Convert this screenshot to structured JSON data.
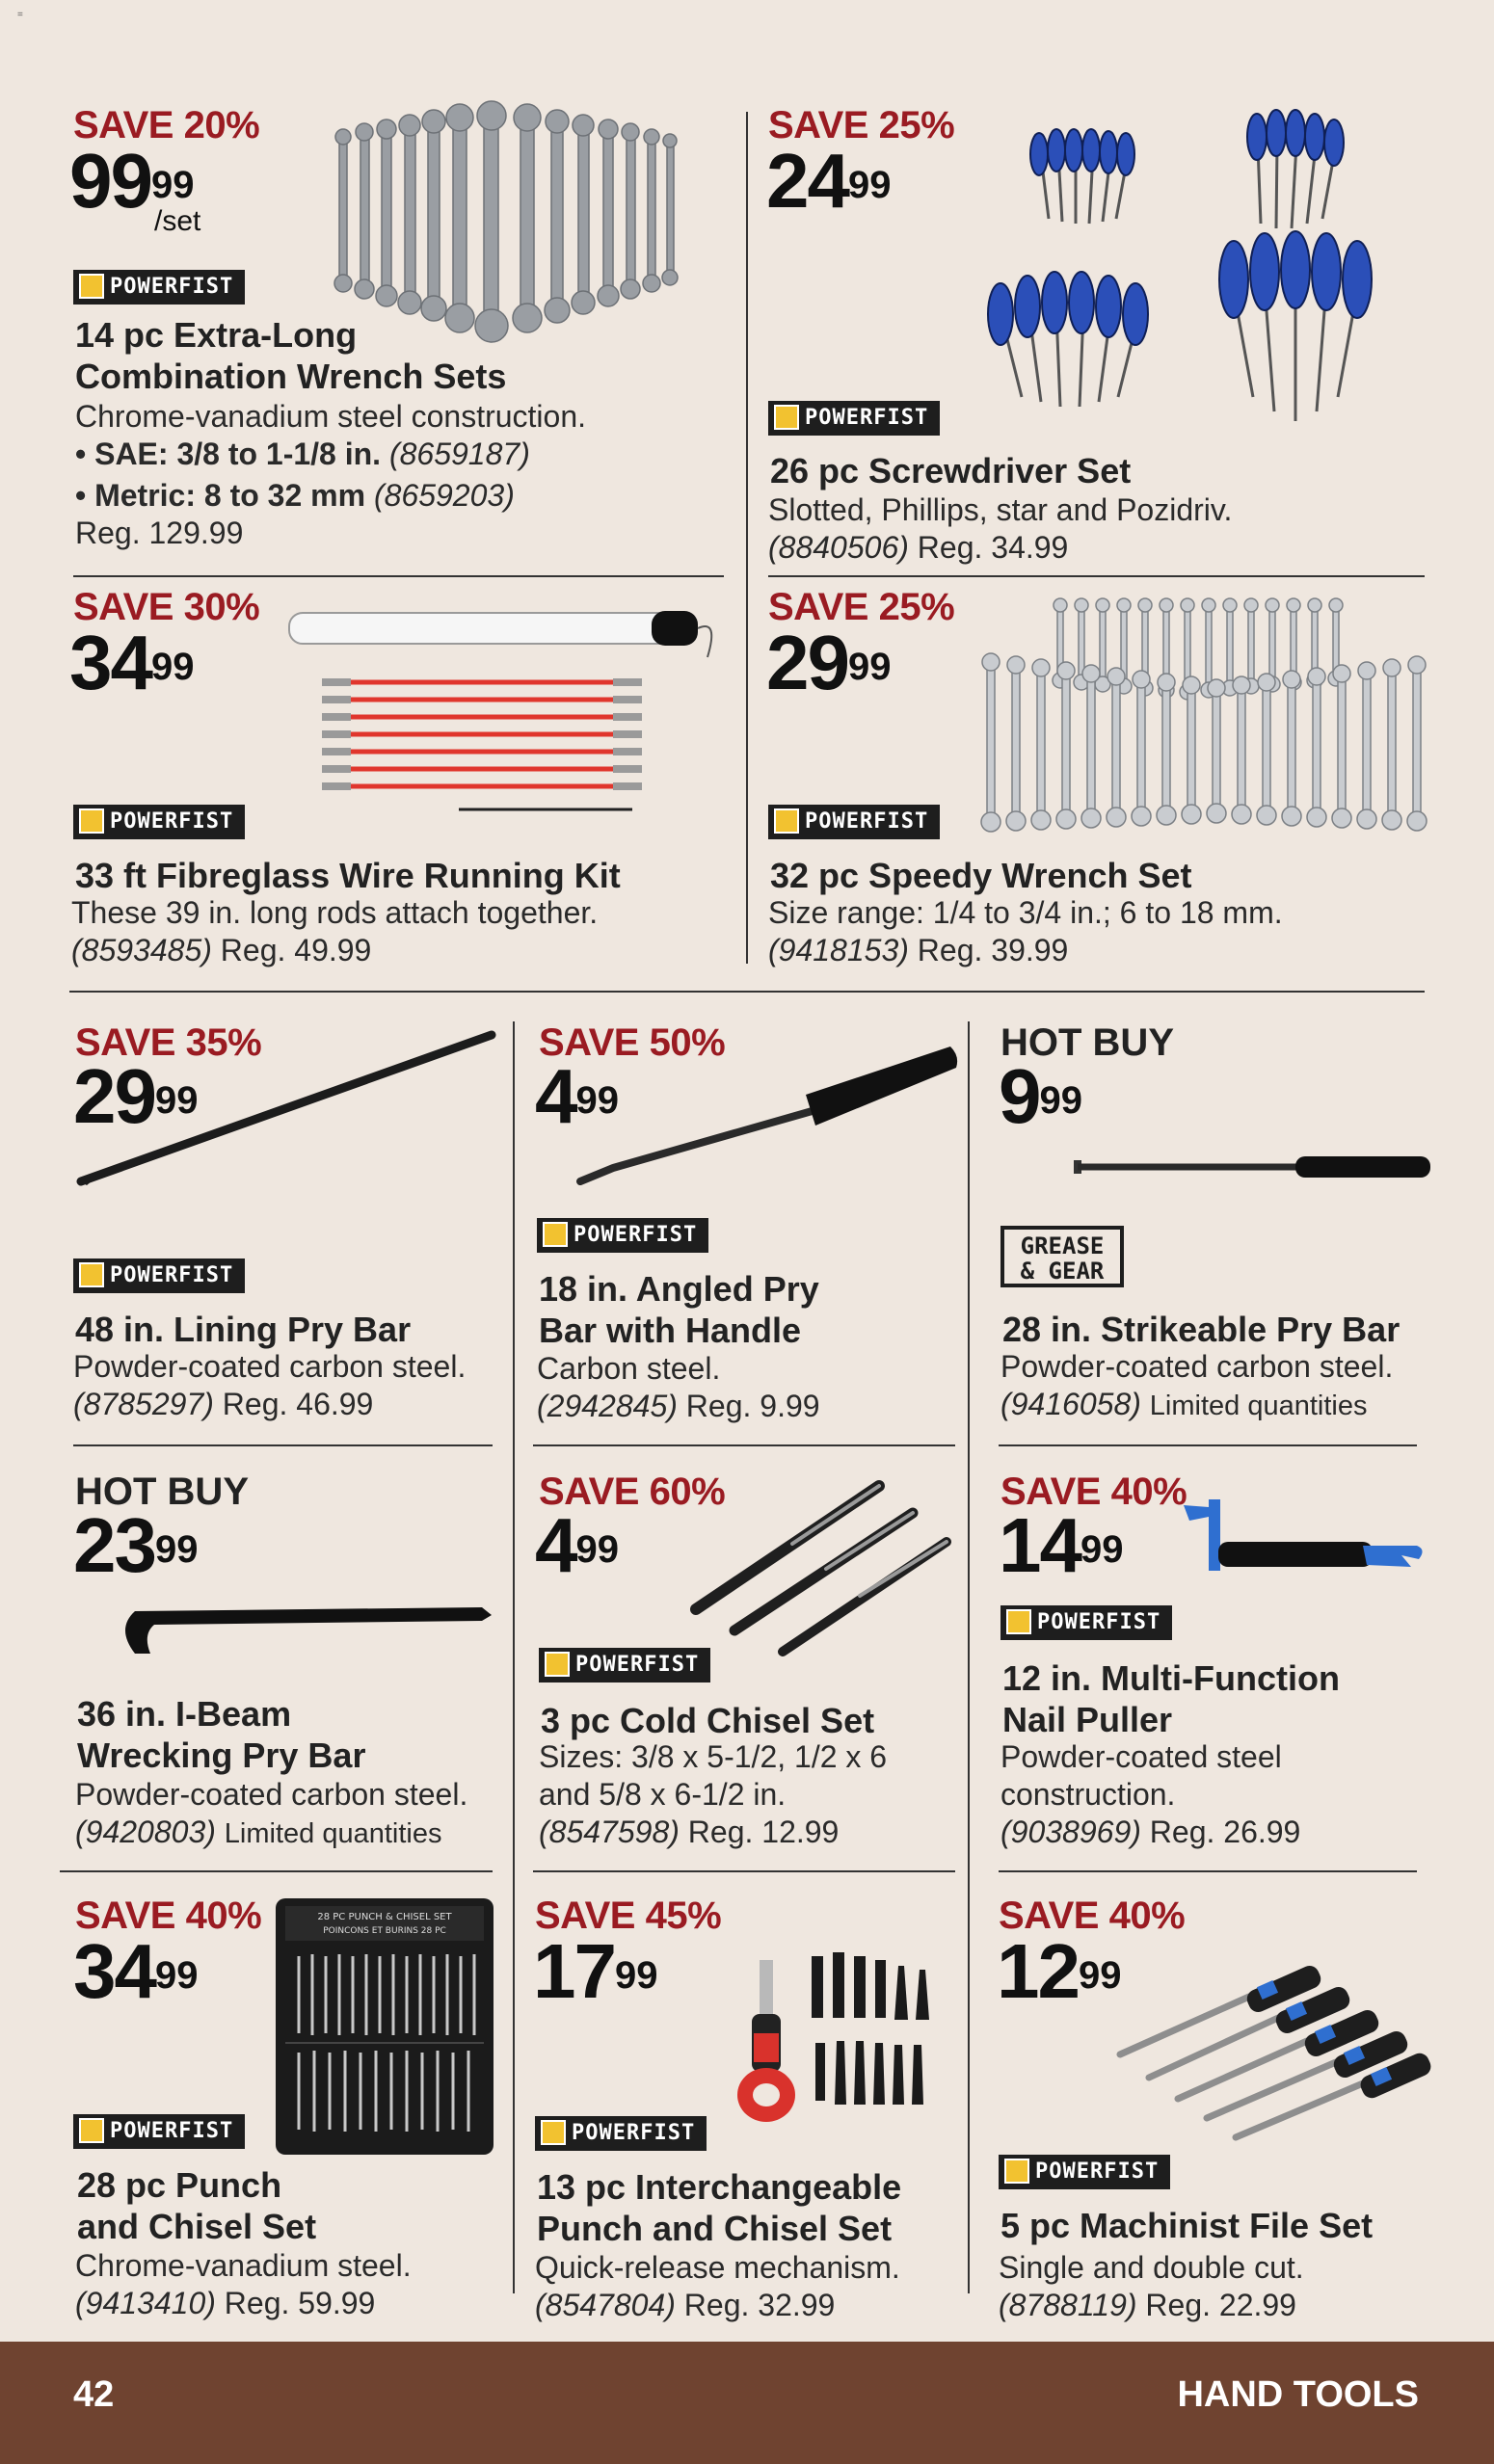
{
  "page": {
    "number": "42",
    "section": "HAND TOOLS",
    "corner_mark": "="
  },
  "brands": {
    "powerfist": "POWERFIST",
    "grease_gear_line1": "GREASE",
    "grease_gear_line2": "& GEAR"
  },
  "colors": {
    "save_red": "#9a1b22",
    "footer_brown": "#6f4330",
    "background": "#efe7df"
  },
  "products": [
    {
      "id": "wrench14",
      "badge": "SAVE 20%",
      "price_dollars": "99",
      "price_cents": "99",
      "per": "/set",
      "brand": "POWERFIST",
      "title_1": "14 pc Extra-Long",
      "title_2": "Combination Wrench Sets",
      "desc_1": "Chrome-vanadium steel construction.",
      "bullet_1_label": "• SAE: 3/8 to 1-1/8 in.",
      "bullet_1_sku": "(8659187)",
      "bullet_2_label": "• Metric: 8 to 32 mm",
      "bullet_2_sku": "(8659203)",
      "reg": "Reg. 129.99"
    },
    {
      "id": "screwdriver26",
      "badge": "SAVE 25%",
      "price_dollars": "24",
      "price_cents": "99",
      "brand": "POWERFIST",
      "title_1": "26 pc Screwdriver Set",
      "desc_1": "Slotted, Phillips, star and Pozidriv.",
      "sku": "(8840506)",
      "reg": "Reg. 34.99"
    },
    {
      "id": "fibreglass",
      "badge": "SAVE 30%",
      "price_dollars": "34",
      "price_cents": "99",
      "brand": "POWERFIST",
      "title_1": "33 ft Fibreglass Wire Running Kit",
      "desc_1": "These 39 in. long rods attach together.",
      "sku": "(8593485)",
      "reg": "Reg. 49.99"
    },
    {
      "id": "speedy32",
      "badge": "SAVE 25%",
      "price_dollars": "29",
      "price_cents": "99",
      "brand": "POWERFIST",
      "title_1": "32 pc Speedy Wrench Set",
      "desc_1": "Size range: 1/4 to 3/4 in.; 6 to 18 mm.",
      "sku": "(9418153)",
      "reg": "Reg. 39.99"
    },
    {
      "id": "lining",
      "badge": "SAVE 35%",
      "price_dollars": "29",
      "price_cents": "99",
      "brand": "POWERFIST",
      "title_1": "48 in. Lining Pry Bar",
      "desc_1": "Powder-coated carbon steel.",
      "sku": "(8785297)",
      "reg": "Reg. 46.99"
    },
    {
      "id": "angled",
      "badge": "SAVE 50%",
      "price_dollars": "4",
      "price_cents": "99",
      "brand": "POWERFIST",
      "title_1": "18 in. Angled Pry",
      "title_2": "Bar with Handle",
      "desc_1": "Carbon steel.",
      "sku": "(2942845)",
      "reg": "Reg. 9.99"
    },
    {
      "id": "strikeable",
      "badge": "HOT BUY",
      "price_dollars": "9",
      "price_cents": "99",
      "title_1": "28 in. Strikeable Pry Bar",
      "desc_1": "Powder-coated carbon steel.",
      "sku": "(9416058)",
      "reg": "Limited quantities"
    },
    {
      "id": "ibeam",
      "badge": "HOT BUY",
      "price_dollars": "23",
      "price_cents": "99",
      "title_1": "36 in. I-Beam",
      "title_2": "Wrecking Pry Bar",
      "desc_1": "Powder-coated carbon steel.",
      "sku": "(9420803)",
      "reg": "Limited quantities"
    },
    {
      "id": "chisel3",
      "badge": "SAVE 60%",
      "price_dollars": "4",
      "price_cents": "99",
      "brand": "POWERFIST",
      "title_1": "3 pc Cold Chisel Set",
      "desc_1": "Sizes: 3/8 x 5-1/2, 1/2 x 6",
      "desc_2": "and 5/8 x 6-1/2 in.",
      "sku": "(8547598)",
      "reg": "Reg. 12.99"
    },
    {
      "id": "nailpuller",
      "badge": "SAVE 40%",
      "price_dollars": "14",
      "price_cents": "99",
      "brand": "POWERFIST",
      "title_1": "12 in. Multi-Function",
      "title_2": "Nail Puller",
      "desc_1": "Powder-coated steel",
      "desc_2": "construction.",
      "sku": "(9038969)",
      "reg": "Reg. 26.99"
    },
    {
      "id": "punch28",
      "badge": "SAVE 40%",
      "price_dollars": "34",
      "price_cents": "99",
      "brand": "POWERFIST",
      "title_1": "28 pc Punch",
      "title_2": "and Chisel Set",
      "desc_1": "Chrome-vanadium steel.",
      "sku": "(9413410)",
      "reg": "Reg. 59.99",
      "case_label_1": "28 PC PUNCH & CHISEL SET",
      "case_label_2": "POINCONS ET BURINS 28 PC"
    },
    {
      "id": "punch13",
      "badge": "SAVE 45%",
      "price_dollars": "17",
      "price_cents": "99",
      "brand": "POWERFIST",
      "title_1": "13 pc Interchangeable",
      "title_2": "Punch and Chisel Set",
      "desc_1": "Quick-release mechanism.",
      "sku": "(8547804)",
      "reg": "Reg. 32.99"
    },
    {
      "id": "file5",
      "badge": "SAVE 40%",
      "price_dollars": "12",
      "price_cents": "99",
      "brand": "POWERFIST",
      "title_1": "5 pc Machinist File Set",
      "desc_1": "Single and double cut.",
      "sku": "(8788119)",
      "reg": "Reg. 22.99"
    }
  ]
}
